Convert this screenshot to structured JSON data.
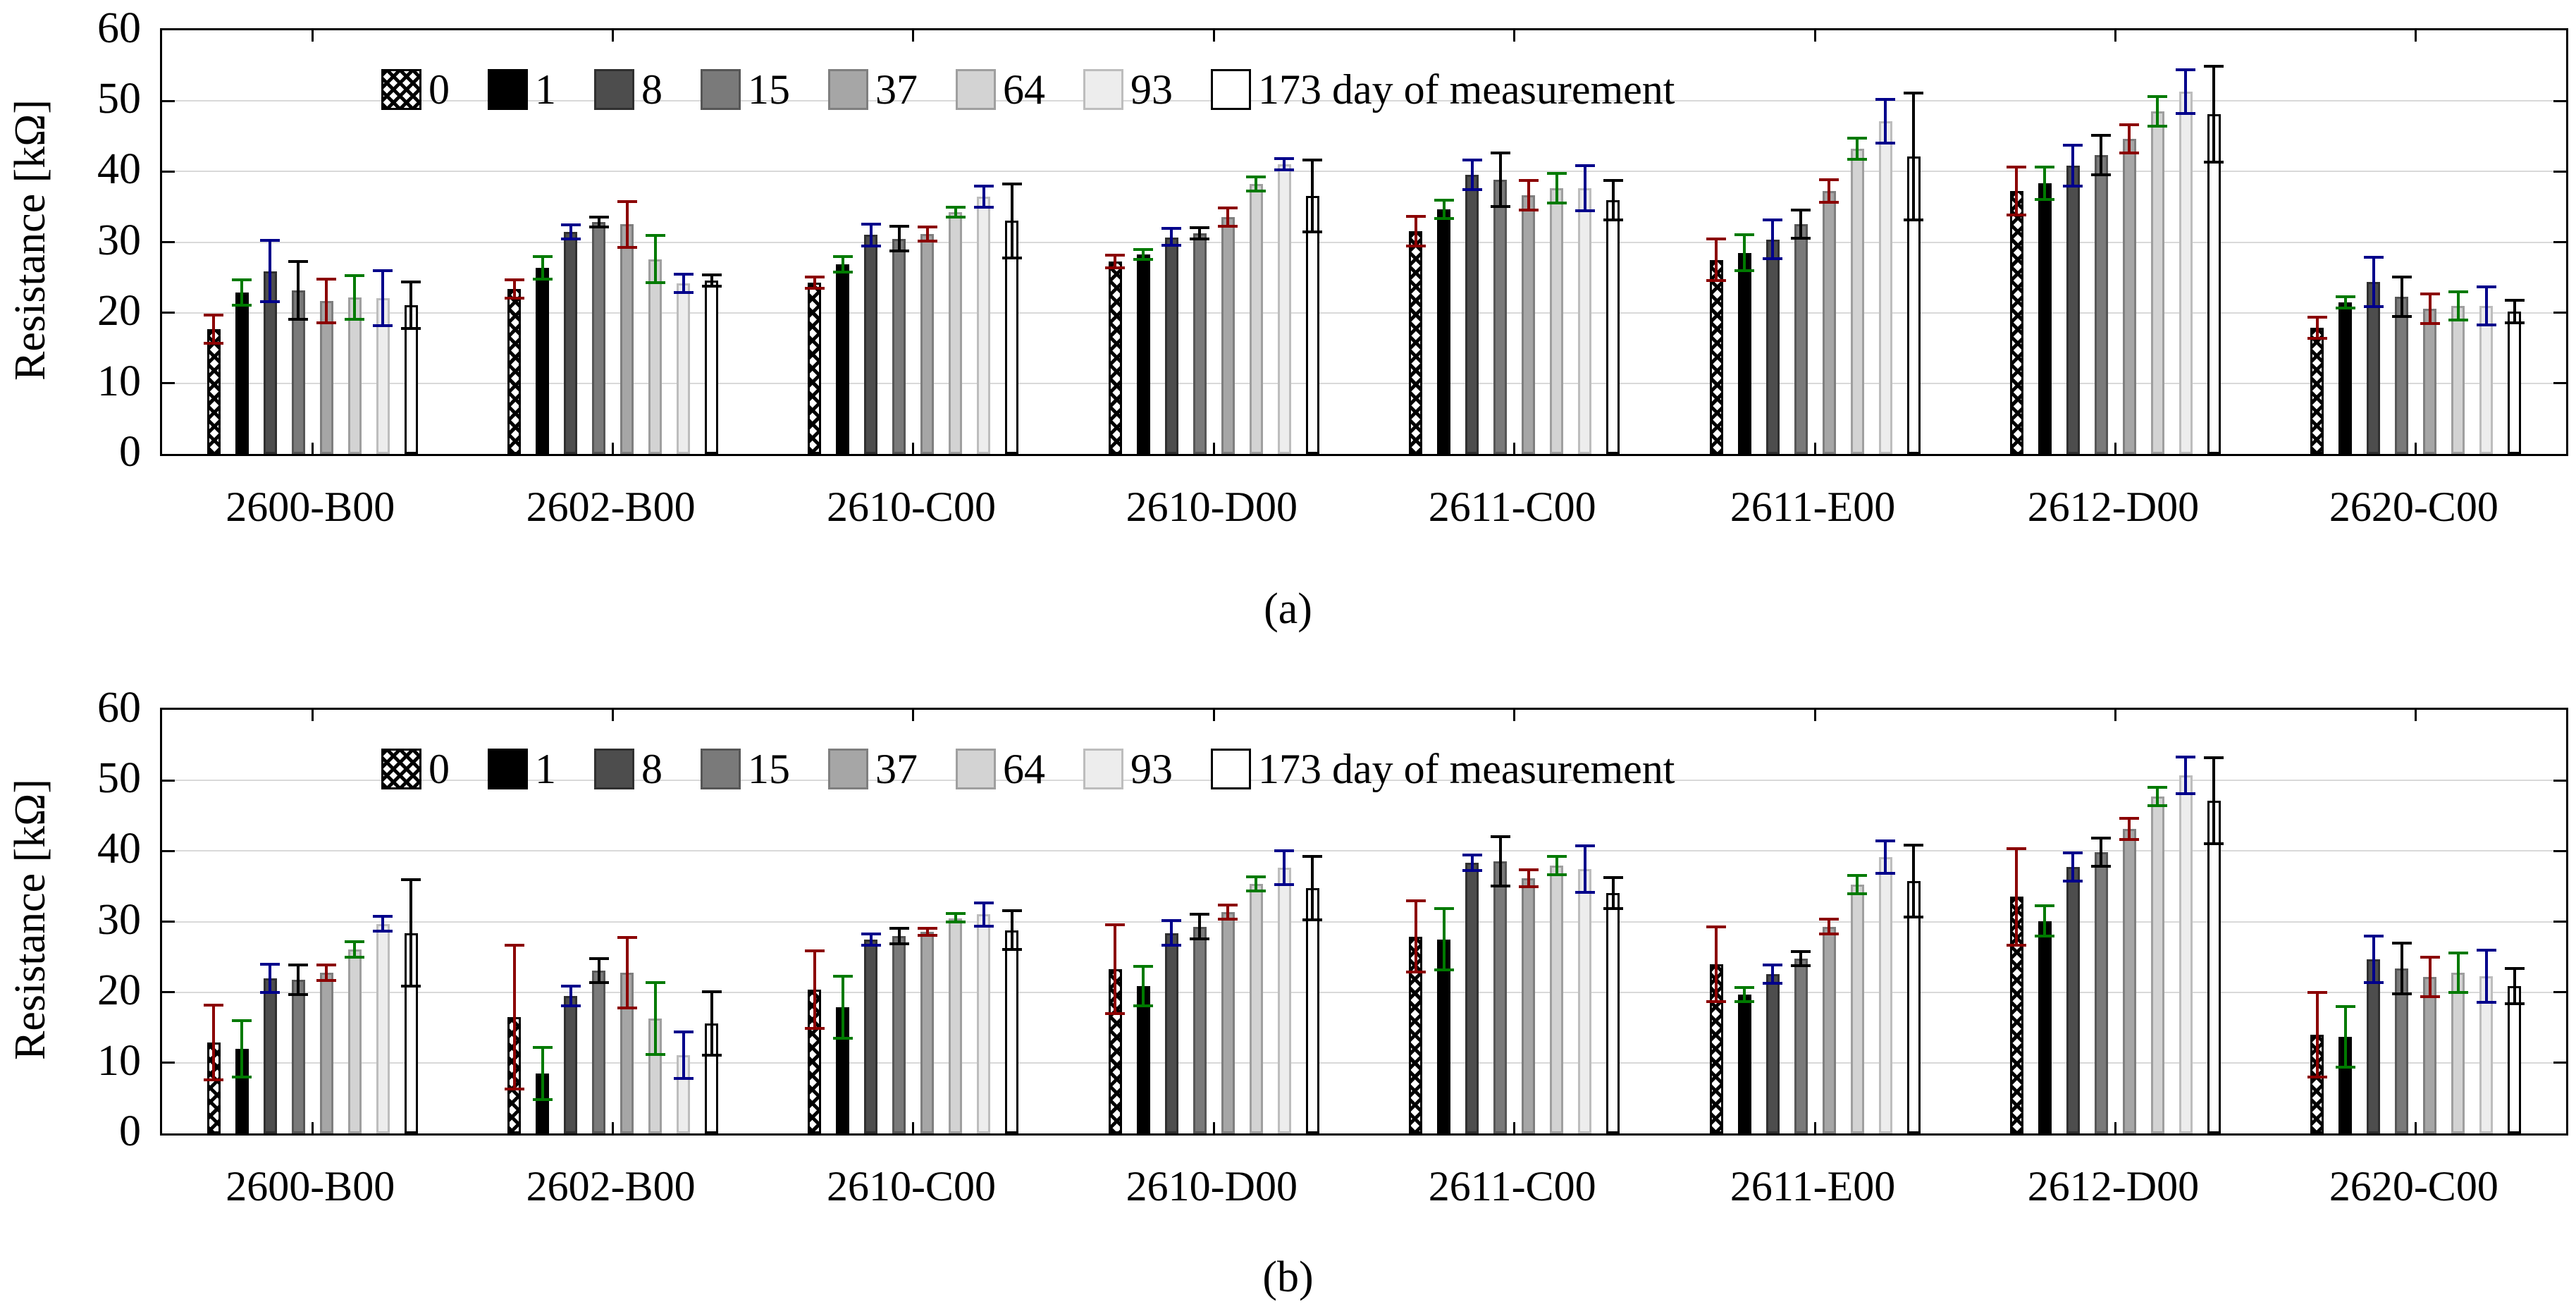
{
  "figure": {
    "background": "#ffffff",
    "grid_color": "#d9d9d9",
    "error_bar_colors": [
      "#8b0000",
      "#007a00",
      "#00008b",
      "#000000"
    ]
  },
  "legend": {
    "labels": [
      "0",
      "1",
      "8",
      "15",
      "37",
      "64",
      "93",
      "173 day of measurement"
    ]
  },
  "chart_data": [
    {
      "type": "bar",
      "caption": "(a)",
      "ylabel": "Resistance [kΩ]",
      "xlabel": "",
      "ylim": [
        0,
        60
      ],
      "yticks": [
        0,
        10,
        20,
        30,
        40,
        50,
        60
      ],
      "grid": true,
      "legend_position": "top-left-inside",
      "categories": [
        "2600-B00",
        "2602-B00",
        "2610-C00",
        "2610-D00",
        "2611-C00",
        "2611-E00",
        "2612-D00",
        "2620-C00"
      ],
      "series": [
        {
          "name": "0",
          "fill": "crosshatch",
          "edge": "#000000",
          "values": [
            17.7,
            23.4,
            24.3,
            27.3,
            31.5,
            27.5,
            37.2,
            17.9
          ],
          "errors": [
            2.2,
            1.5,
            1.0,
            1.1,
            2.3,
            3.1,
            3.6,
            1.7
          ]
        },
        {
          "name": "1",
          "fill": "#000000",
          "edge": "#000000",
          "values": [
            22.9,
            26.4,
            26.9,
            28.3,
            34.6,
            28.5,
            38.3,
            21.5
          ],
          "errors": [
            2.0,
            1.8,
            1.3,
            0.9,
            1.5,
            2.7,
            2.5,
            1.0
          ]
        },
        {
          "name": "8",
          "fill": "#4d4d4d",
          "edge": "#303030",
          "values": [
            25.9,
            31.4,
            31.0,
            30.7,
            39.5,
            30.4,
            40.8,
            24.4
          ],
          "errors": [
            4.5,
            1.2,
            1.7,
            1.4,
            2.3,
            2.9,
            3.1,
            3.7
          ]
        },
        {
          "name": "15",
          "fill": "#7a7a7a",
          "edge": "#565656",
          "values": [
            23.2,
            32.8,
            30.5,
            31.2,
            38.8,
            32.5,
            42.3,
            22.3
          ],
          "errors": [
            4.3,
            0.9,
            1.9,
            1.0,
            4.0,
            2.2,
            3.0,
            3.0
          ]
        },
        {
          "name": "37",
          "fill": "#a6a6a6",
          "edge": "#7f7f7f",
          "values": [
            21.7,
            32.5,
            31.1,
            33.5,
            36.6,
            37.2,
            44.6,
            20.6
          ],
          "errors": [
            3.3,
            3.4,
            1.2,
            1.5,
            2.3,
            1.8,
            2.2,
            2.3
          ]
        },
        {
          "name": "64",
          "fill": "#d3d3d3",
          "edge": "#9f9f9f",
          "values": [
            22.2,
            27.6,
            34.2,
            38.2,
            37.6,
            43.2,
            48.5,
            21.0
          ],
          "errors": [
            3.3,
            3.5,
            0.9,
            1.2,
            2.3,
            1.7,
            2.3,
            2.2
          ]
        },
        {
          "name": "93",
          "fill": "#ededed",
          "edge": "#bdbdbd",
          "values": [
            22.1,
            24.2,
            36.4,
            41.0,
            37.6,
            47.1,
            51.3,
            21.0
          ],
          "errors": [
            4.1,
            1.5,
            1.7,
            1.0,
            3.4,
            3.3,
            3.3,
            2.9
          ]
        },
        {
          "name": "173",
          "fill": "#ffffff",
          "edge": "#000000",
          "values": [
            21.1,
            24.6,
            33.0,
            36.5,
            35.9,
            42.1,
            48.1,
            20.2
          ],
          "errors": [
            3.5,
            1.0,
            5.4,
            5.3,
            3.0,
            9.2,
            7.0,
            1.8
          ]
        }
      ]
    },
    {
      "type": "bar",
      "caption": "(b)",
      "ylabel": "Resistance [kΩ]",
      "xlabel": "",
      "ylim": [
        0,
        60
      ],
      "yticks": [
        0,
        10,
        20,
        30,
        40,
        50,
        60
      ],
      "grid": true,
      "legend_position": "top-left-inside",
      "categories": [
        "2600-B00",
        "2602-B00",
        "2610-C00",
        "2610-D00",
        "2611-C00",
        "2611-E00",
        "2612-D00",
        "2620-C00"
      ],
      "series": [
        {
          "name": "0",
          "fill": "crosshatch",
          "edge": "#000000",
          "values": [
            12.9,
            16.5,
            20.4,
            23.3,
            27.9,
            24.0,
            33.5,
            14.0
          ],
          "errors": [
            5.5,
            10.4,
            5.7,
            6.5,
            5.2,
            5.5,
            7.0,
            6.2
          ]
        },
        {
          "name": "1",
          "fill": "#000000",
          "edge": "#000000",
          "values": [
            12.0,
            8.5,
            17.9,
            20.9,
            27.5,
            19.7,
            30.1,
            13.7
          ],
          "errors": [
            4.2,
            3.9,
            4.6,
            3.0,
            4.5,
            1.2,
            2.3,
            4.5
          ]
        },
        {
          "name": "8",
          "fill": "#4d4d4d",
          "edge": "#303030",
          "values": [
            22.0,
            19.5,
            27.5,
            28.4,
            38.3,
            22.6,
            37.7,
            24.7
          ],
          "errors": [
            2.2,
            1.6,
            1.0,
            1.9,
            1.3,
            1.5,
            2.2,
            3.5
          ]
        },
        {
          "name": "15",
          "fill": "#7a7a7a",
          "edge": "#565656",
          "values": [
            21.8,
            23.1,
            28.0,
            29.3,
            38.5,
            24.8,
            39.8,
            23.4
          ],
          "errors": [
            2.3,
            1.9,
            1.3,
            1.9,
            3.7,
            1.2,
            2.2,
            3.8
          ]
        },
        {
          "name": "37",
          "fill": "#a6a6a6",
          "edge": "#7f7f7f",
          "values": [
            22.8,
            22.8,
            28.6,
            31.3,
            36.1,
            29.3,
            43.1,
            22.2
          ],
          "errors": [
            1.3,
            5.2,
            0.7,
            1.2,
            1.4,
            1.2,
            1.7,
            3.0
          ]
        },
        {
          "name": "64",
          "fill": "#d3d3d3",
          "edge": "#9f9f9f",
          "values": [
            26.1,
            16.3,
            30.5,
            35.3,
            37.9,
            35.2,
            47.7,
            22.8
          ],
          "errors": [
            1.3,
            5.3,
            0.8,
            1.2,
            1.5,
            1.5,
            1.5,
            3.0
          ]
        },
        {
          "name": "93",
          "fill": "#ededed",
          "edge": "#bdbdbd",
          "values": [
            29.7,
            11.1,
            31.0,
            37.6,
            37.4,
            39.1,
            50.7,
            22.3
          ],
          "errors": [
            1.2,
            3.5,
            1.8,
            2.6,
            3.5,
            2.5,
            2.8,
            3.9
          ]
        },
        {
          "name": "173",
          "fill": "#ffffff",
          "edge": "#000000",
          "values": [
            28.4,
            15.6,
            28.8,
            34.7,
            34.0,
            35.7,
            47.1,
            20.9
          ],
          "errors": [
            7.7,
            4.7,
            2.9,
            4.7,
            2.4,
            5.3,
            6.3,
            2.7
          ]
        }
      ]
    }
  ]
}
